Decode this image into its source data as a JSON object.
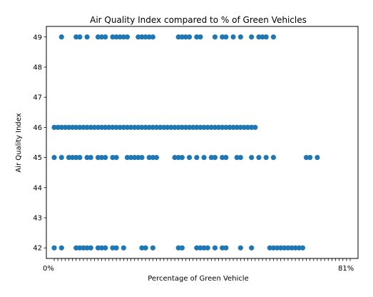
{
  "chart_data": {
    "type": "scatter",
    "title": "Air Quality Index compared to % of Green Vehicles",
    "xlabel": "Percentage of Green Vehicle",
    "ylabel": "Air Quality Index",
    "yticks": [
      42,
      43,
      44,
      45,
      46,
      47,
      48,
      49
    ],
    "ylim": [
      41.65,
      49.35
    ],
    "xtick_first": "0%",
    "xtick_last": "81%",
    "x_categories_count": 82,
    "grid": false,
    "marker_color": "#1f77b4",
    "series": [
      {
        "points": [
          {
            "x": 0,
            "y": 42
          },
          {
            "x": 0,
            "y": 45
          },
          {
            "x": 0,
            "y": 46
          },
          {
            "x": 1,
            "y": 46
          },
          {
            "x": 2,
            "y": 42
          },
          {
            "x": 2,
            "y": 45
          },
          {
            "x": 2,
            "y": 46
          },
          {
            "x": 2,
            "y": 49
          },
          {
            "x": 3,
            "y": 46
          },
          {
            "x": 4,
            "y": 45
          },
          {
            "x": 4,
            "y": 46
          },
          {
            "x": 5,
            "y": 45
          },
          {
            "x": 5,
            "y": 46
          },
          {
            "x": 6,
            "y": 42
          },
          {
            "x": 6,
            "y": 45
          },
          {
            "x": 6,
            "y": 46
          },
          {
            "x": 6,
            "y": 49
          },
          {
            "x": 7,
            "y": 42
          },
          {
            "x": 7,
            "y": 45
          },
          {
            "x": 7,
            "y": 46
          },
          {
            "x": 7,
            "y": 49
          },
          {
            "x": 8,
            "y": 42
          },
          {
            "x": 8,
            "y": 46
          },
          {
            "x": 9,
            "y": 42
          },
          {
            "x": 9,
            "y": 45
          },
          {
            "x": 9,
            "y": 46
          },
          {
            "x": 9,
            "y": 49
          },
          {
            "x": 10,
            "y": 42
          },
          {
            "x": 10,
            "y": 45
          },
          {
            "x": 10,
            "y": 46
          },
          {
            "x": 11,
            "y": 46
          },
          {
            "x": 12,
            "y": 42
          },
          {
            "x": 12,
            "y": 45
          },
          {
            "x": 12,
            "y": 46
          },
          {
            "x": 12,
            "y": 49
          },
          {
            "x": 13,
            "y": 42
          },
          {
            "x": 13,
            "y": 45
          },
          {
            "x": 13,
            "y": 46
          },
          {
            "x": 13,
            "y": 49
          },
          {
            "x": 14,
            "y": 42
          },
          {
            "x": 14,
            "y": 45
          },
          {
            "x": 14,
            "y": 46
          },
          {
            "x": 14,
            "y": 49
          },
          {
            "x": 15,
            "y": 46
          },
          {
            "x": 16,
            "y": 42
          },
          {
            "x": 16,
            "y": 45
          },
          {
            "x": 16,
            "y": 46
          },
          {
            "x": 16,
            "y": 49
          },
          {
            "x": 17,
            "y": 42
          },
          {
            "x": 17,
            "y": 45
          },
          {
            "x": 17,
            "y": 46
          },
          {
            "x": 17,
            "y": 49
          },
          {
            "x": 18,
            "y": 46
          },
          {
            "x": 18,
            "y": 49
          },
          {
            "x": 19,
            "y": 42
          },
          {
            "x": 19,
            "y": 46
          },
          {
            "x": 19,
            "y": 49
          },
          {
            "x": 20,
            "y": 45
          },
          {
            "x": 20,
            "y": 46
          },
          {
            "x": 20,
            "y": 49
          },
          {
            "x": 21,
            "y": 45
          },
          {
            "x": 21,
            "y": 46
          },
          {
            "x": 22,
            "y": 45
          },
          {
            "x": 22,
            "y": 46
          },
          {
            "x": 23,
            "y": 45
          },
          {
            "x": 23,
            "y": 46
          },
          {
            "x": 23,
            "y": 49
          },
          {
            "x": 24,
            "y": 42
          },
          {
            "x": 24,
            "y": 45
          },
          {
            "x": 24,
            "y": 46
          },
          {
            "x": 24,
            "y": 49
          },
          {
            "x": 25,
            "y": 42
          },
          {
            "x": 25,
            "y": 46
          },
          {
            "x": 25,
            "y": 49
          },
          {
            "x": 26,
            "y": 45
          },
          {
            "x": 26,
            "y": 46
          },
          {
            "x": 26,
            "y": 49
          },
          {
            "x": 27,
            "y": 42
          },
          {
            "x": 27,
            "y": 45
          },
          {
            "x": 27,
            "y": 46
          },
          {
            "x": 27,
            "y": 49
          },
          {
            "x": 28,
            "y": 45
          },
          {
            "x": 28,
            "y": 46
          },
          {
            "x": 29,
            "y": 46
          },
          {
            "x": 30,
            "y": 46
          },
          {
            "x": 31,
            "y": 46
          },
          {
            "x": 32,
            "y": 46
          },
          {
            "x": 33,
            "y": 45
          },
          {
            "x": 33,
            "y": 46
          },
          {
            "x": 34,
            "y": 42
          },
          {
            "x": 34,
            "y": 45
          },
          {
            "x": 34,
            "y": 46
          },
          {
            "x": 34,
            "y": 49
          },
          {
            "x": 35,
            "y": 42
          },
          {
            "x": 35,
            "y": 45
          },
          {
            "x": 35,
            "y": 46
          },
          {
            "x": 35,
            "y": 49
          },
          {
            "x": 36,
            "y": 46
          },
          {
            "x": 36,
            "y": 49
          },
          {
            "x": 37,
            "y": 45
          },
          {
            "x": 37,
            "y": 46
          },
          {
            "x": 37,
            "y": 49
          },
          {
            "x": 38,
            "y": 46
          },
          {
            "x": 39,
            "y": 42
          },
          {
            "x": 39,
            "y": 45
          },
          {
            "x": 39,
            "y": 46
          },
          {
            "x": 39,
            "y": 49
          },
          {
            "x": 40,
            "y": 42
          },
          {
            "x": 40,
            "y": 46
          },
          {
            "x": 40,
            "y": 49
          },
          {
            "x": 41,
            "y": 42
          },
          {
            "x": 41,
            "y": 45
          },
          {
            "x": 41,
            "y": 46
          },
          {
            "x": 42,
            "y": 42
          },
          {
            "x": 42,
            "y": 46
          },
          {
            "x": 43,
            "y": 45
          },
          {
            "x": 43,
            "y": 46
          },
          {
            "x": 44,
            "y": 42
          },
          {
            "x": 44,
            "y": 45
          },
          {
            "x": 44,
            "y": 46
          },
          {
            "x": 44,
            "y": 49
          },
          {
            "x": 45,
            "y": 46
          },
          {
            "x": 46,
            "y": 42
          },
          {
            "x": 46,
            "y": 45
          },
          {
            "x": 46,
            "y": 46
          },
          {
            "x": 46,
            "y": 49
          },
          {
            "x": 47,
            "y": 42
          },
          {
            "x": 47,
            "y": 45
          },
          {
            "x": 47,
            "y": 46
          },
          {
            "x": 47,
            "y": 49
          },
          {
            "x": 48,
            "y": 46
          },
          {
            "x": 49,
            "y": 46
          },
          {
            "x": 49,
            "y": 49
          },
          {
            "x": 50,
            "y": 45
          },
          {
            "x": 50,
            "y": 46
          },
          {
            "x": 51,
            "y": 42
          },
          {
            "x": 51,
            "y": 45
          },
          {
            "x": 51,
            "y": 46
          },
          {
            "x": 51,
            "y": 49
          },
          {
            "x": 52,
            "y": 46
          },
          {
            "x": 53,
            "y": 46
          },
          {
            "x": 54,
            "y": 42
          },
          {
            "x": 54,
            "y": 45
          },
          {
            "x": 54,
            "y": 46
          },
          {
            "x": 54,
            "y": 49
          },
          {
            "x": 55,
            "y": 46
          },
          {
            "x": 56,
            "y": 45
          },
          {
            "x": 56,
            "y": 49
          },
          {
            "x": 57,
            "y": 49
          },
          {
            "x": 58,
            "y": 45
          },
          {
            "x": 58,
            "y": 49
          },
          {
            "x": 59,
            "y": 42
          },
          {
            "x": 60,
            "y": 42
          },
          {
            "x": 60,
            "y": 45
          },
          {
            "x": 60,
            "y": 49
          },
          {
            "x": 61,
            "y": 42
          },
          {
            "x": 62,
            "y": 42
          },
          {
            "x": 63,
            "y": 42
          },
          {
            "x": 64,
            "y": 42
          },
          {
            "x": 65,
            "y": 42
          },
          {
            "x": 66,
            "y": 42
          },
          {
            "x": 67,
            "y": 42
          },
          {
            "x": 68,
            "y": 42
          },
          {
            "x": 69,
            "y": 45
          },
          {
            "x": 70,
            "y": 45
          },
          {
            "x": 72,
            "y": 45
          }
        ]
      }
    ]
  }
}
